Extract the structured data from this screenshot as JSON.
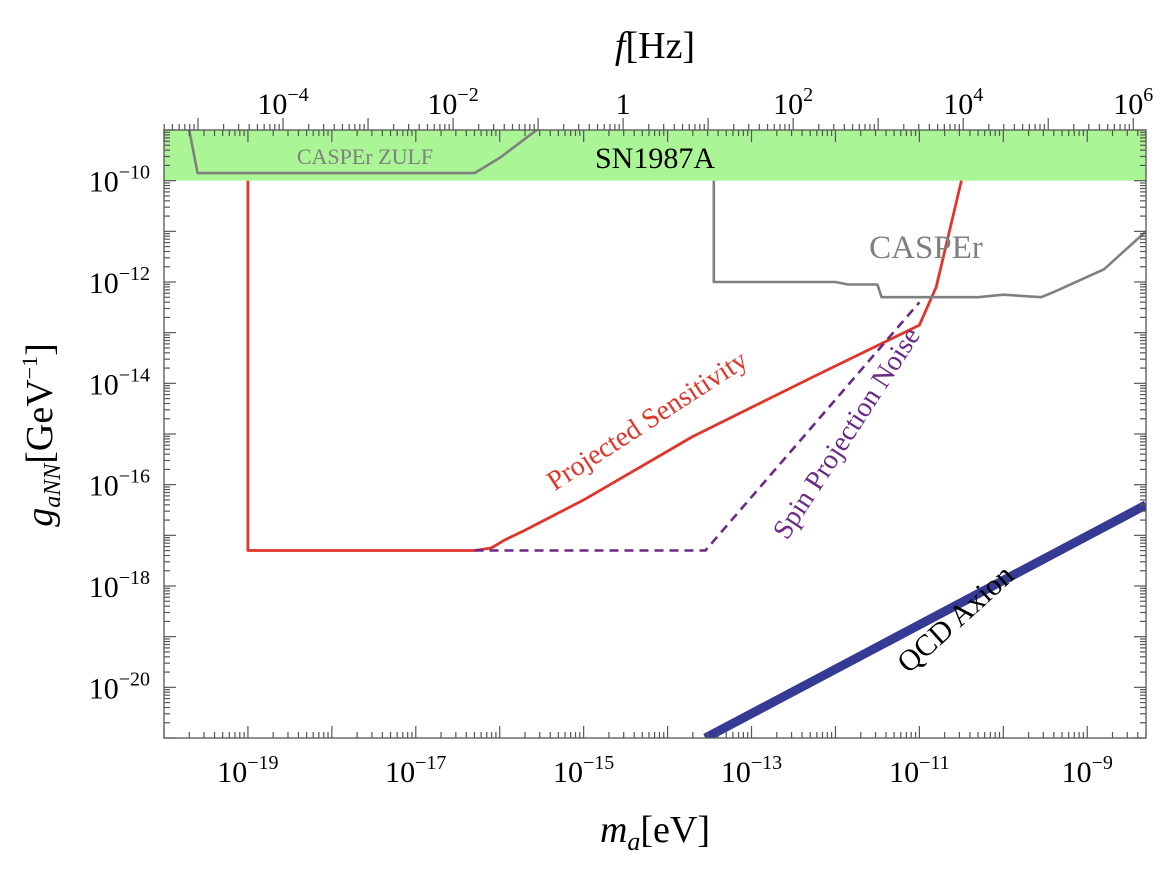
{
  "chart_data": {
    "type": "line",
    "xlabel": {
      "main": "m",
      "sub": "a",
      "unit": "[eV]"
    },
    "ylabel": {
      "main": "g",
      "sub": "aNN",
      "unit": "[GeV",
      "unit_exp": "−1",
      "unit_close": "]"
    },
    "x2label": {
      "main": "f",
      "unit": "[Hz]"
    },
    "x_scale": "log",
    "y_scale": "log",
    "x_range_log10": [
      -20.0,
      -8.3
    ],
    "y_range_log10": [
      -21.0,
      -9.0
    ],
    "top_axis_range_log10": [
      -5.4,
      6.15
    ],
    "grid": false,
    "x_ticks": [
      {
        "exp": -19,
        "base": "10",
        "sup": "−19"
      },
      {
        "exp": -17,
        "base": "10",
        "sup": "−17"
      },
      {
        "exp": -15,
        "base": "10",
        "sup": "−15"
      },
      {
        "exp": -13,
        "base": "10",
        "sup": "−13"
      },
      {
        "exp": -11,
        "base": "10",
        "sup": "−11"
      },
      {
        "exp": -9,
        "base": "10",
        "sup": "−9"
      }
    ],
    "y_ticks": [
      {
        "exp": -10,
        "base": "10",
        "sup": "−10"
      },
      {
        "exp": -12,
        "base": "10",
        "sup": "−12"
      },
      {
        "exp": -14,
        "base": "10",
        "sup": "−14"
      },
      {
        "exp": -16,
        "base": "10",
        "sup": "−16"
      },
      {
        "exp": -18,
        "base": "10",
        "sup": "−18"
      },
      {
        "exp": -20,
        "base": "10",
        "sup": "−20"
      }
    ],
    "top_ticks": [
      {
        "exp": -4,
        "base": "10",
        "sup": "−4"
      },
      {
        "exp": -2,
        "base": "10",
        "sup": "−2"
      },
      {
        "exp": 0,
        "base": "1",
        "sup": ""
      },
      {
        "exp": 2,
        "base": "10",
        "sup": "2"
      },
      {
        "exp": 4,
        "base": "10",
        "sup": "4"
      },
      {
        "exp": 6,
        "base": "10",
        "sup": "6"
      }
    ],
    "regions": [
      {
        "name": "SN1987A",
        "y_from_log10": -10.0,
        "y_to_log10": -9.0,
        "color": "#aaf595"
      }
    ],
    "series": [
      {
        "name": "Projected Sensitivity",
        "color": "#e0352b",
        "style": "solid",
        "points_log10": [
          [
            -19.0,
            -10.0
          ],
          [
            -19.0,
            -17.3
          ],
          [
            -16.3,
            -17.3
          ],
          [
            -16.1,
            -17.25
          ],
          [
            -15.95,
            -17.1
          ],
          [
            -15.7,
            -16.9
          ],
          [
            -15.0,
            -16.3
          ],
          [
            -13.7,
            -15.05
          ],
          [
            -12.3,
            -13.9
          ],
          [
            -11.0,
            -12.85
          ],
          [
            -10.8,
            -12.1
          ],
          [
            -10.5,
            -10.0
          ]
        ]
      },
      {
        "name": "Spin Projection Noise",
        "color": "#6a2a86",
        "style": "dashed",
        "points_log10": [
          [
            -16.3,
            -17.3
          ],
          [
            -13.55,
            -17.3
          ],
          [
            -11.0,
            -12.4
          ]
        ]
      },
      {
        "name": "CASPEr",
        "color": "#808080",
        "style": "solid",
        "points_log10": [
          [
            -13.45,
            -10.0
          ],
          [
            -13.45,
            -12.0
          ],
          [
            -12.0,
            -12.0
          ],
          [
            -11.85,
            -12.05
          ],
          [
            -11.5,
            -12.05
          ],
          [
            -11.45,
            -12.3
          ],
          [
            -10.3,
            -12.3
          ],
          [
            -10.0,
            -12.25
          ],
          [
            -9.55,
            -12.3
          ],
          [
            -9.4,
            -12.2
          ],
          [
            -8.8,
            -11.75
          ],
          [
            -8.3,
            -11.0
          ]
        ]
      },
      {
        "name": "CASPEr ZULF",
        "color": "#808080",
        "style": "solid",
        "points_log10": [
          [
            -19.7,
            -9.0
          ],
          [
            -19.6,
            -9.85
          ],
          [
            -16.3,
            -9.85
          ],
          [
            -16.0,
            -9.55
          ],
          [
            -15.4,
            -8.8
          ]
        ]
      },
      {
        "name": "QCD Axion",
        "color": "#353b94",
        "style": "solid",
        "points_log10": [
          [
            -13.55,
            -21.0
          ],
          [
            -8.3,
            -16.4
          ]
        ]
      }
    ],
    "annotations": [
      {
        "text": "SN1987A",
        "color": "#000000",
        "size": 30,
        "rotate": 0
      },
      {
        "text": "CASPEr ZULF",
        "color": "#808080",
        "size": 22,
        "rotate": 0
      },
      {
        "text": "CASPEr",
        "color": "#808080",
        "size": 33,
        "rotate": 0
      },
      {
        "text": "Projected Sensitivity",
        "color": "#e0352b",
        "size": 28,
        "rotate": -33
      },
      {
        "text": "Spin Projection Noise",
        "color": "#6a2a86",
        "size": 28,
        "rotate": -57
      },
      {
        "text": "QCD Axion",
        "color": "#000000",
        "size": 30,
        "rotate": -42
      }
    ]
  }
}
